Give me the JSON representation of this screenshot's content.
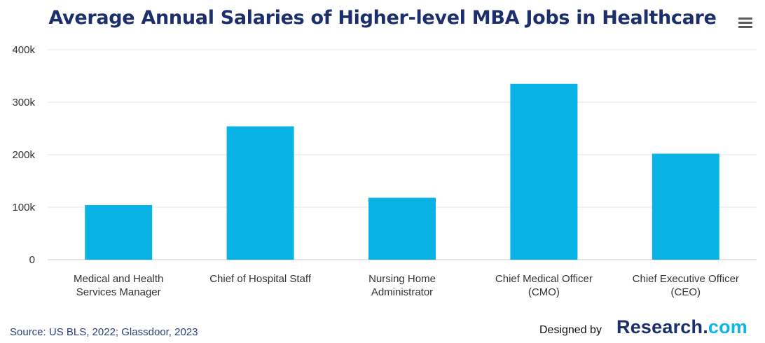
{
  "header": {
    "title": "Average Annual Salaries of Higher-level MBA Jobs in Healthcare"
  },
  "menu": {
    "icon": "hamburger-menu-icon"
  },
  "chart_data": {
    "type": "bar",
    "title": "Average Annual Salaries of Higher-level MBA Jobs in Healthcare",
    "categories": [
      [
        "Medical and Health",
        "Services Manager"
      ],
      [
        "Chief of Hospital Staff"
      ],
      [
        "Nursing Home",
        "Administrator"
      ],
      [
        "Chief Medical Officer",
        "(CMO)"
      ],
      [
        "Chief Executive Officer",
        "(CEO)"
      ]
    ],
    "values": [
      104000,
      254000,
      118000,
      335000,
      202000
    ],
    "ylim": [
      0,
      400000
    ],
    "yticks": [
      0,
      100000,
      200000,
      300000,
      400000
    ],
    "ytick_labels": [
      "0",
      "100k",
      "200k",
      "300k",
      "400k"
    ],
    "xlabel": "",
    "ylabel": "",
    "grid": true,
    "legend": "none",
    "bar_color": "#0ab3e6"
  },
  "footer": {
    "source": "Source: US BLS, 2022; Glassdoor, 2023",
    "designed_by": "Designed by",
    "brand_name": "Research",
    "brand_dot": ".",
    "brand_tld": "com"
  },
  "colors": {
    "title": "#1c2f6b",
    "bar": "#0ab3e6",
    "grid": "#e6e6e6",
    "brand_accent": "#0fb5e8"
  }
}
